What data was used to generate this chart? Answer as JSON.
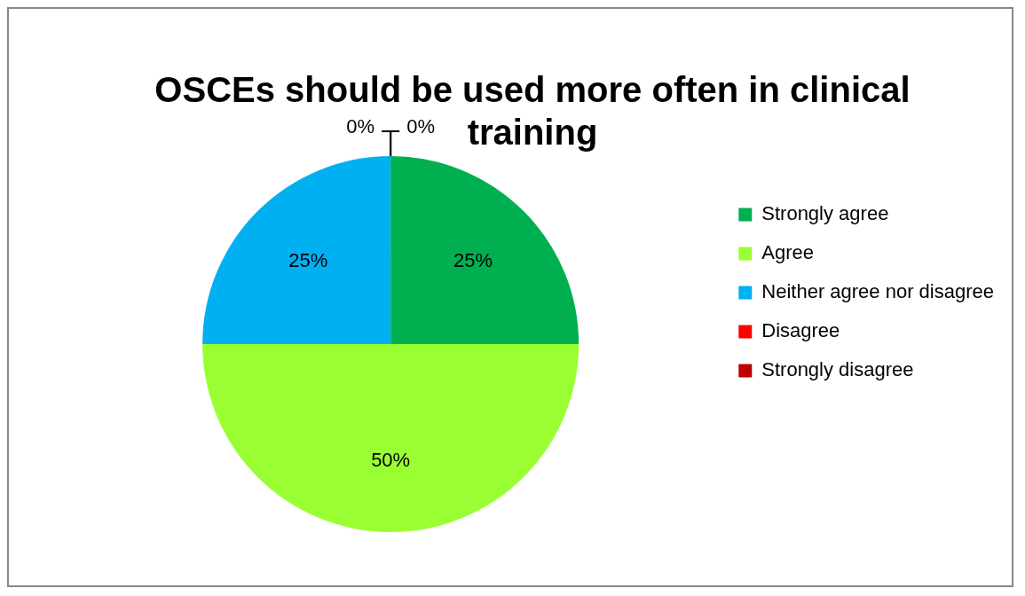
{
  "chart_data": {
    "type": "pie",
    "title": "OSCEs should be used more often in clinical training",
    "categories": [
      "Strongly agree",
      "Agree",
      "Neither agree nor disagree",
      "Disagree",
      "Strongly disagree"
    ],
    "values": [
      25,
      50,
      25,
      0,
      0
    ],
    "colors": [
      "#00b050",
      "#99ff33",
      "#00b0f0",
      "#ff0000",
      "#c00000"
    ],
    "value_labels": [
      "25%",
      "50%",
      "25%",
      "0%",
      "0%"
    ],
    "legend": "right"
  }
}
